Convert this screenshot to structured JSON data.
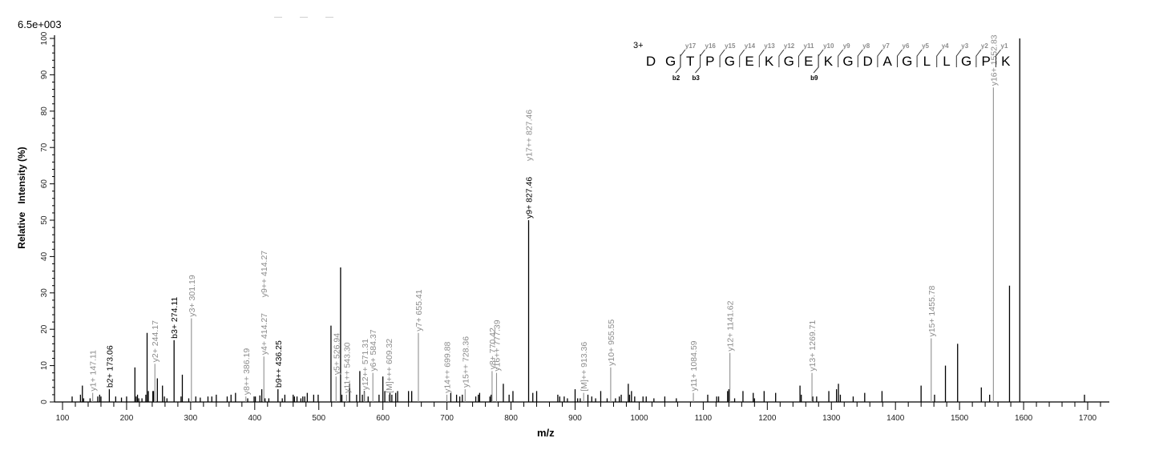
{
  "header": {
    "scale_label": "6.5e+003"
  },
  "chart_data": {
    "type": "bar",
    "subtype": "mass-spectrum-stick",
    "title": "",
    "xlabel": "m/z",
    "ylabel": "Relative   Intensity (%)",
    "xlim": [
      100,
      1730
    ],
    "ylim": [
      0,
      100
    ],
    "max_intensity_label": "6.5e+003",
    "x_ticks": [
      100,
      200,
      300,
      400,
      500,
      600,
      700,
      800,
      900,
      1000,
      1100,
      1200,
      1300,
      1400,
      1500,
      1600,
      1700
    ],
    "y_ticks": [
      0,
      10,
      20,
      30,
      40,
      50,
      60,
      70,
      80,
      90,
      100
    ],
    "grid": false,
    "peptide": {
      "charge": "3+",
      "sequence": [
        "D",
        "G",
        "T",
        "P",
        "G",
        "E",
        "K",
        "G",
        "E",
        "K",
        "G",
        "D",
        "A",
        "G",
        "L",
        "L",
        "G",
        "P",
        "K"
      ],
      "y_ions": [
        "y17",
        "y16",
        "y15",
        "y14",
        "y13",
        "y12",
        "y11",
        "y10",
        "y9",
        "y8",
        "y7",
        "y6",
        "y5",
        "y4",
        "y3",
        "y2",
        "y1"
      ],
      "b_ions": [
        {
          "label": "b2",
          "after_index": 1
        },
        {
          "label": "b3",
          "after_index": 2
        },
        {
          "label": "b9",
          "after_index": 8
        }
      ]
    },
    "annotated_peaks": [
      {
        "mz": 147.11,
        "intensity": 2.5,
        "label": "y1+ 147.11",
        "type": "y"
      },
      {
        "mz": 173.06,
        "intensity": 3.5,
        "label": "b2+ 173.06",
        "type": "b"
      },
      {
        "mz": 244.17,
        "intensity": 10.5,
        "label": "y2+ 244.17",
        "type": "y"
      },
      {
        "mz": 274.11,
        "intensity": 17.0,
        "label": "b3+ 274.11",
        "type": "b"
      },
      {
        "mz": 301.19,
        "intensity": 23.0,
        "label": "y3+ 301.19",
        "type": "y"
      },
      {
        "mz": 386.19,
        "intensity": 1.5,
        "label": "y8++ 386.19",
        "type": "y"
      },
      {
        "mz": 414.27,
        "intensity": 12.5,
        "label": "y4+ 414.27",
        "type": "y",
        "overlap_label": "y9++ 414.27"
      },
      {
        "mz": 436.25,
        "intensity": 3.5,
        "label": "b9++ 436.25",
        "type": "b"
      },
      {
        "mz": 526.94,
        "intensity": 7.0,
        "label": "y5+ 526.94",
        "type": "y"
      },
      {
        "mz": 543.3,
        "intensity": 2.0,
        "label": "y11++ 543.30",
        "type": "y"
      },
      {
        "mz": 571.31,
        "intensity": 2.8,
        "label": "y12++ 571.31",
        "type": "y"
      },
      {
        "mz": 584.37,
        "intensity": 8.0,
        "label": "y6+ 584.37",
        "type": "y"
      },
      {
        "mz": 609.32,
        "intensity": 2.0,
        "label": "[M]+++ 609.32",
        "type": "y"
      },
      {
        "mz": 655.41,
        "intensity": 19.0,
        "label": "y7+ 655.41",
        "type": "y"
      },
      {
        "mz": 699.88,
        "intensity": 2.0,
        "label": "y14++ 699.88",
        "type": "y"
      },
      {
        "mz": 728.36,
        "intensity": 3.5,
        "label": "y15++ 728.36",
        "type": "y"
      },
      {
        "mz": 770.42,
        "intensity": 8.5,
        "label": "y8+ 770.42",
        "type": "y"
      },
      {
        "mz": 777.39,
        "intensity": 8.0,
        "label": "y16++ 777.39",
        "type": "y"
      },
      {
        "mz": 827.46,
        "intensity": 50.0,
        "label": "y9+ 827.46",
        "type": "b",
        "overlap_label": "y17++ 827.46"
      },
      {
        "mz": 913.36,
        "intensity": 2.5,
        "label": "[M]++ 913.36",
        "type": "y"
      },
      {
        "mz": 955.55,
        "intensity": 9.5,
        "label": "y10+ 955.55",
        "type": "y"
      },
      {
        "mz": 1084.59,
        "intensity": 2.5,
        "label": "y11+ 1084.59",
        "type": "y"
      },
      {
        "mz": 1141.62,
        "intensity": 13.5,
        "label": "y12+ 1141.62",
        "type": "y"
      },
      {
        "mz": 1269.71,
        "intensity": 8.0,
        "label": "y13+ 1269.71",
        "type": "y"
      },
      {
        "mz": 1455.78,
        "intensity": 17.5,
        "label": "y15+ 1455.78",
        "type": "y"
      },
      {
        "mz": 1552.83,
        "intensity": 86.5,
        "label": "y16+ 1552.83",
        "type": "y"
      }
    ],
    "unannotated_peaks": [
      {
        "mz": 115,
        "intensity": 1.5
      },
      {
        "mz": 128,
        "intensity": 2.0
      },
      {
        "mz": 131,
        "intensity": 4.5
      },
      {
        "mz": 133,
        "intensity": 1.0
      },
      {
        "mz": 143,
        "intensity": 1.0
      },
      {
        "mz": 155,
        "intensity": 1.5
      },
      {
        "mz": 158,
        "intensity": 2.0
      },
      {
        "mz": 160,
        "intensity": 1.5
      },
      {
        "mz": 183,
        "intensity": 1.5
      },
      {
        "mz": 192,
        "intensity": 1.2
      },
      {
        "mz": 200,
        "intensity": 1.5
      },
      {
        "mz": 213,
        "intensity": 9.5
      },
      {
        "mz": 215,
        "intensity": 1.5
      },
      {
        "mz": 217,
        "intensity": 2.0
      },
      {
        "mz": 219,
        "intensity": 1.0
      },
      {
        "mz": 224,
        "intensity": 1.0
      },
      {
        "mz": 230,
        "intensity": 2.0
      },
      {
        "mz": 232,
        "intensity": 19.0
      },
      {
        "mz": 234,
        "intensity": 3.0
      },
      {
        "mz": 241,
        "intensity": 3.0
      },
      {
        "mz": 242,
        "intensity": 3.0
      },
      {
        "mz": 248,
        "intensity": 6.5
      },
      {
        "mz": 256,
        "intensity": 4.5
      },
      {
        "mz": 259,
        "intensity": 1.5
      },
      {
        "mz": 263,
        "intensity": 1.0
      },
      {
        "mz": 285,
        "intensity": 1.5
      },
      {
        "mz": 287,
        "intensity": 7.5
      },
      {
        "mz": 297,
        "intensity": 1.0
      },
      {
        "mz": 308,
        "intensity": 1.5
      },
      {
        "mz": 315,
        "intensity": 1.2
      },
      {
        "mz": 327,
        "intensity": 1.5
      },
      {
        "mz": 333,
        "intensity": 1.5
      },
      {
        "mz": 340,
        "intensity": 2.0
      },
      {
        "mz": 357,
        "intensity": 1.5
      },
      {
        "mz": 363,
        "intensity": 2.0
      },
      {
        "mz": 370,
        "intensity": 2.5
      },
      {
        "mz": 389,
        "intensity": 1.0
      },
      {
        "mz": 399,
        "intensity": 1.5
      },
      {
        "mz": 401,
        "intensity": 1.5
      },
      {
        "mz": 408,
        "intensity": 1.8
      },
      {
        "mz": 411,
        "intensity": 3.5
      },
      {
        "mz": 416,
        "intensity": 1.0
      },
      {
        "mz": 422,
        "intensity": 1.0
      },
      {
        "mz": 443,
        "intensity": 1.0
      },
      {
        "mz": 447,
        "intensity": 2.0
      },
      {
        "mz": 460,
        "intensity": 2.0
      },
      {
        "mz": 462,
        "intensity": 1.5
      },
      {
        "mz": 466,
        "intensity": 1.5
      },
      {
        "mz": 472,
        "intensity": 1.0
      },
      {
        "mz": 475,
        "intensity": 1.5
      },
      {
        "mz": 478,
        "intensity": 1.5
      },
      {
        "mz": 482,
        "intensity": 2.5
      },
      {
        "mz": 492,
        "intensity": 2.0
      },
      {
        "mz": 499,
        "intensity": 2.0
      },
      {
        "mz": 519,
        "intensity": 21.0
      },
      {
        "mz": 534,
        "intensity": 37.0
      },
      {
        "mz": 536,
        "intensity": 2.0
      },
      {
        "mz": 548,
        "intensity": 5.0
      },
      {
        "mz": 559,
        "intensity": 2.0
      },
      {
        "mz": 564,
        "intensity": 8.5
      },
      {
        "mz": 568,
        "intensity": 2.0
      },
      {
        "mz": 571,
        "intensity": 3.0
      },
      {
        "mz": 577,
        "intensity": 1.5
      },
      {
        "mz": 594,
        "intensity": 2.0
      },
      {
        "mz": 600,
        "intensity": 7.0
      },
      {
        "mz": 603,
        "intensity": 3.0
      },
      {
        "mz": 611,
        "intensity": 2.5
      },
      {
        "mz": 614,
        "intensity": 2.0
      },
      {
        "mz": 620,
        "intensity": 2.5
      },
      {
        "mz": 623,
        "intensity": 3.0
      },
      {
        "mz": 640,
        "intensity": 3.0
      },
      {
        "mz": 645,
        "intensity": 3.0
      },
      {
        "mz": 706,
        "intensity": 2.5
      },
      {
        "mz": 715,
        "intensity": 2.0
      },
      {
        "mz": 720,
        "intensity": 1.5
      },
      {
        "mz": 724,
        "intensity": 2.0
      },
      {
        "mz": 745,
        "intensity": 1.5
      },
      {
        "mz": 749,
        "intensity": 2.0
      },
      {
        "mz": 751,
        "intensity": 2.5
      },
      {
        "mz": 767,
        "intensity": 1.5
      },
      {
        "mz": 769,
        "intensity": 2.0
      },
      {
        "mz": 788,
        "intensity": 5.0
      },
      {
        "mz": 797,
        "intensity": 2.0
      },
      {
        "mz": 803,
        "intensity": 3.0
      },
      {
        "mz": 834,
        "intensity": 2.5
      },
      {
        "mz": 840,
        "intensity": 3.0
      },
      {
        "mz": 873,
        "intensity": 2.0
      },
      {
        "mz": 876,
        "intensity": 1.5
      },
      {
        "mz": 883,
        "intensity": 1.5
      },
      {
        "mz": 888,
        "intensity": 1.0
      },
      {
        "mz": 900,
        "intensity": 3.5
      },
      {
        "mz": 904,
        "intensity": 1.0
      },
      {
        "mz": 908,
        "intensity": 1.0
      },
      {
        "mz": 920,
        "intensity": 2.0
      },
      {
        "mz": 926,
        "intensity": 1.5
      },
      {
        "mz": 932,
        "intensity": 1.0
      },
      {
        "mz": 940,
        "intensity": 3.0
      },
      {
        "mz": 950,
        "intensity": 1.0
      },
      {
        "mz": 963,
        "intensity": 1.0
      },
      {
        "mz": 969,
        "intensity": 1.5
      },
      {
        "mz": 972,
        "intensity": 2.0
      },
      {
        "mz": 983,
        "intensity": 5.0
      },
      {
        "mz": 985,
        "intensity": 2.0
      },
      {
        "mz": 988,
        "intensity": 3.0
      },
      {
        "mz": 993,
        "intensity": 1.5
      },
      {
        "mz": 1006,
        "intensity": 1.5
      },
      {
        "mz": 1011,
        "intensity": 1.5
      },
      {
        "mz": 1023,
        "intensity": 1.0
      },
      {
        "mz": 1040,
        "intensity": 1.5
      },
      {
        "mz": 1058,
        "intensity": 1.0
      },
      {
        "mz": 1107,
        "intensity": 2.0
      },
      {
        "mz": 1121,
        "intensity": 1.5
      },
      {
        "mz": 1124,
        "intensity": 1.5
      },
      {
        "mz": 1138,
        "intensity": 3.0
      },
      {
        "mz": 1140,
        "intensity": 3.5
      },
      {
        "mz": 1149,
        "intensity": 1.0
      },
      {
        "mz": 1162,
        "intensity": 3.0
      },
      {
        "mz": 1178,
        "intensity": 2.5
      },
      {
        "mz": 1180,
        "intensity": 1.0
      },
      {
        "mz": 1195,
        "intensity": 3.0
      },
      {
        "mz": 1213,
        "intensity": 2.5
      },
      {
        "mz": 1251,
        "intensity": 4.5
      },
      {
        "mz": 1253,
        "intensity": 2.0
      },
      {
        "mz": 1271,
        "intensity": 1.5
      },
      {
        "mz": 1277,
        "intensity": 1.5
      },
      {
        "mz": 1296,
        "intensity": 3.0
      },
      {
        "mz": 1308,
        "intensity": 3.5
      },
      {
        "mz": 1311,
        "intensity": 5.0
      },
      {
        "mz": 1314,
        "intensity": 2.0
      },
      {
        "mz": 1334,
        "intensity": 1.5
      },
      {
        "mz": 1352,
        "intensity": 2.5
      },
      {
        "mz": 1379,
        "intensity": 3.0
      },
      {
        "mz": 1440,
        "intensity": 4.5
      },
      {
        "mz": 1461,
        "intensity": 2.0
      },
      {
        "mz": 1478,
        "intensity": 10.0
      },
      {
        "mz": 1497,
        "intensity": 16.0
      },
      {
        "mz": 1534,
        "intensity": 4.0
      },
      {
        "mz": 1547,
        "intensity": 2.0
      },
      {
        "mz": 1578,
        "intensity": 32.0
      },
      {
        "mz": 1594,
        "intensity": 100.0
      },
      {
        "mz": 1695,
        "intensity": 2.0
      }
    ]
  },
  "colors": {
    "axis": "#000000",
    "unannotated_peak": "#000000",
    "y_ion_peak": "#909090",
    "b_ion_peak": "#000000",
    "y_ion_label": "#8c8c8c",
    "b_ion_label": "#000000",
    "sequence_text": "#000000"
  }
}
